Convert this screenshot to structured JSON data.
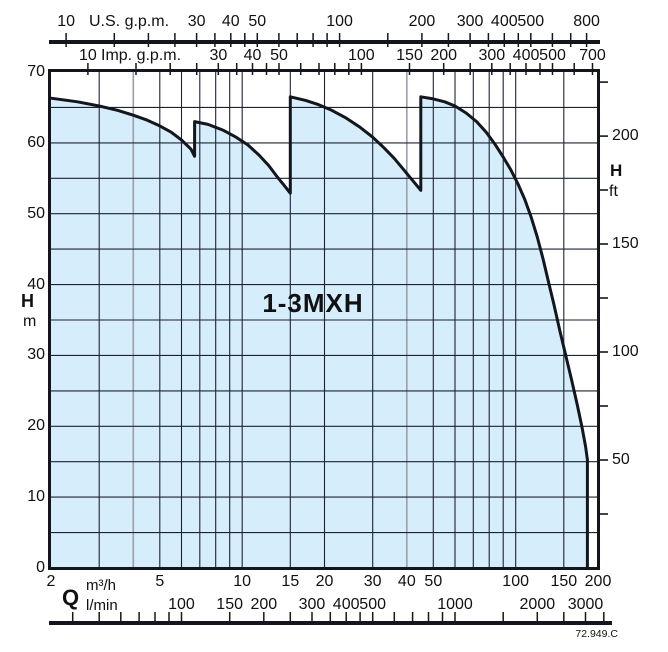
{
  "chart_data": {
    "type": "area",
    "model": "1-3MXH",
    "doc_number": "72.949.C",
    "axes": {
      "us": {
        "title": "U.S. g.p.m.",
        "labels": [
          10,
          30,
          40,
          50,
          100,
          200,
          300,
          400,
          500,
          800
        ],
        "ticks": [
          10,
          15,
          20,
          25,
          30,
          35,
          40,
          45,
          50,
          60,
          70,
          80,
          90,
          100,
          150,
          200,
          250,
          300,
          350,
          400,
          450,
          500,
          600,
          700,
          800
        ]
      },
      "imp": {
        "title": "Imp. g.p.m.",
        "labels": [
          10,
          30,
          40,
          50,
          100,
          150,
          200,
          300,
          400,
          500,
          700
        ],
        "ticks": [
          10,
          15,
          20,
          25,
          30,
          35,
          40,
          45,
          50,
          60,
          70,
          80,
          90,
          100,
          150,
          200,
          250,
          300,
          350,
          400,
          450,
          500,
          600,
          700
        ]
      },
      "m3h": {
        "axis_letter": "Q",
        "unit": "m³/h",
        "scale": "log",
        "range": [
          2,
          200
        ],
        "labels": [
          2,
          5,
          10,
          15,
          20,
          30,
          40,
          50,
          100,
          150,
          200
        ]
      },
      "lmin": {
        "unit": "l/min",
        "labels": [
          100,
          150,
          200,
          300,
          400,
          500,
          1000,
          2000,
          3000
        ],
        "ticks": [
          40,
          50,
          60,
          70,
          80,
          90,
          100,
          150,
          200,
          250,
          300,
          350,
          400,
          450,
          500,
          600,
          700,
          800,
          900,
          1000,
          1500,
          2000,
          2500,
          3000,
          3500
        ]
      },
      "h_m": {
        "letter": "H",
        "unit": "m",
        "range": [
          0,
          70
        ],
        "labels": [
          0,
          10,
          20,
          30,
          40,
          50,
          60,
          70
        ]
      },
      "h_ft": {
        "letter": "H",
        "unit": "ft",
        "labels": [
          50,
          100,
          150,
          200
        ],
        "ticks": [
          25,
          50,
          75,
          100,
          125,
          150,
          175,
          200,
          225
        ]
      }
    },
    "grid": {
      "v_m3h": [
        3,
        4,
        5,
        6,
        7,
        8,
        9,
        10,
        15,
        20,
        30,
        40,
        50,
        60,
        70,
        80,
        90,
        100,
        150
      ],
      "v_gray": [
        4,
        40
      ],
      "h_m": [
        5,
        10,
        15,
        20,
        25,
        30,
        35,
        40,
        45,
        50,
        55,
        60,
        65
      ]
    },
    "envelope_m3h_H": [
      [
        2,
        66.3
      ],
      [
        2.5,
        65.8
      ],
      [
        3,
        65.2
      ],
      [
        3.5,
        64.6
      ],
      [
        4,
        63.9
      ],
      [
        4.5,
        63.2
      ],
      [
        5,
        62.4
      ],
      [
        5.5,
        61.5
      ],
      [
        6,
        60.4
      ],
      [
        6.5,
        59.1
      ],
      [
        6.7,
        58.1
      ],
      [
        6.7,
        63.0
      ],
      [
        7.5,
        62.6
      ],
      [
        8.5,
        61.8
      ],
      [
        9.5,
        60.8
      ],
      [
        10.5,
        59.7
      ],
      [
        11.5,
        58.3
      ],
      [
        12.5,
        56.8
      ],
      [
        13.5,
        55.1
      ],
      [
        14.3,
        53.9
      ],
      [
        15,
        52.9
      ],
      [
        15,
        66.5
      ],
      [
        17,
        66.0
      ],
      [
        19,
        65.4
      ],
      [
        21,
        64.7
      ],
      [
        24,
        63.5
      ],
      [
        27,
        62.2
      ],
      [
        30,
        60.8
      ],
      [
        33,
        59.3
      ],
      [
        36,
        57.8
      ],
      [
        39,
        56.2
      ],
      [
        42,
        54.7
      ],
      [
        45,
        53.3
      ],
      [
        45,
        66.5
      ],
      [
        50,
        66.2
      ],
      [
        55,
        65.8
      ],
      [
        60,
        65.2
      ],
      [
        66,
        64.2
      ],
      [
        72,
        63.0
      ],
      [
        78,
        61.5
      ],
      [
        84,
        59.8
      ],
      [
        90,
        58.0
      ],
      [
        96,
        56.2
      ],
      [
        102,
        54.2
      ],
      [
        108,
        52.0
      ],
      [
        114,
        49.5
      ],
      [
        120,
        46.7
      ],
      [
        126,
        43.6
      ],
      [
        132,
        40.3
      ],
      [
        138,
        37.2
      ],
      [
        145,
        33.5
      ],
      [
        152,
        30.2
      ],
      [
        160,
        26.6
      ],
      [
        168,
        23.0
      ],
      [
        175,
        19.8
      ],
      [
        180,
        17.2
      ],
      [
        183,
        15.3
      ],
      [
        183,
        0
      ]
    ],
    "colors": {
      "fill": "#d6edfb",
      "line": "#13161c",
      "grid": "#1d2430",
      "grid_gray": "#9aa0a8"
    }
  }
}
